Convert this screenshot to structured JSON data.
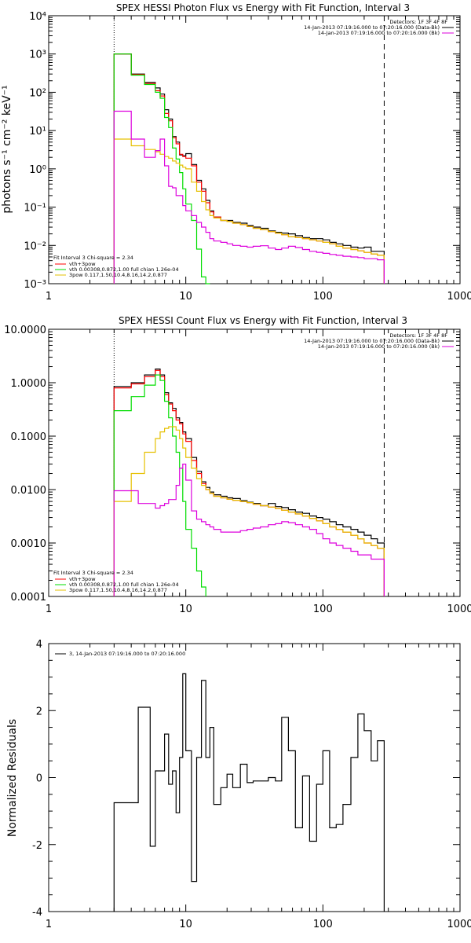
{
  "colors": {
    "data": "#000000",
    "total": "#ff0000",
    "vth": "#00dd00",
    "bpow": "#e6c000",
    "background": "#dd00dd"
  },
  "chart_data": [
    {
      "type": "line",
      "title": "SPEX HESSI Photon Flux vs Energy with Fit Function, Interval 3",
      "ylabel": "photons s⁻¹ cm⁻² keV⁻¹",
      "xscale": "log",
      "yscale": "log",
      "xlim": [
        1,
        1000
      ],
      "ylim": [
        0.001,
        10000
      ],
      "xticklabels": [
        "1",
        "10",
        "100",
        "1000"
      ],
      "yticklabels": [
        "10⁻³",
        "10⁻²",
        "10⁻¹",
        "10⁰",
        "10¹",
        "10²",
        "10³",
        "10⁴"
      ],
      "fit_range_low": 3,
      "fit_range_high": 280,
      "header_lines": [
        "Detectors: 1F 3F 4F 8F",
        "14-Jan-2013 07:19:16.000 to 07:20:16.000 (Data-Bk)",
        "14-Jan-2013 07:19:16.000 to 07:20:16.000 (Bk)"
      ],
      "legend_lines": [
        "Fit Interval 3   Chi-square = 2.34",
        "vth+3pow",
        "vth 0.00308,0.872,1.00   full chian 1.26e-04",
        "3pow 0.117,1.50,10.4,8.16,14.2,0.877"
      ],
      "edges": [
        3,
        3.5,
        4,
        4.5,
        5,
        5.5,
        6,
        6.5,
        7,
        7.5,
        8,
        8.5,
        9,
        9.5,
        10,
        11,
        12,
        13,
        14,
        15,
        16,
        18,
        20,
        22,
        25,
        28,
        31,
        35,
        40,
        45,
        50,
        56,
        63,
        71,
        80,
        90,
        100,
        112,
        125,
        140,
        160,
        180,
        200,
        225,
        250,
        280
      ],
      "series": [
        {
          "name": "Data-Bk",
          "color": "data",
          "values": [
            1000,
            1000,
            300,
            300,
            180,
            180,
            130,
            90,
            35,
            20,
            7,
            5,
            2.3,
            2.2,
            2.5,
            1.3,
            0.5,
            0.3,
            0.15,
            0.08,
            0.055,
            0.045,
            0.045,
            0.04,
            0.038,
            0.033,
            0.03,
            0.028,
            0.024,
            0.022,
            0.021,
            0.02,
            0.018,
            0.016,
            0.015,
            0.015,
            0.014,
            0.012,
            0.011,
            0.01,
            0.009,
            0.0085,
            0.009,
            0.007,
            0.007
          ]
        },
        {
          "name": "vth+3pow",
          "color": "total",
          "values": [
            1000,
            1000,
            290,
            290,
            170,
            170,
            110,
            80,
            28,
            18,
            6.5,
            4.5,
            2.4,
            2.1,
            1.9,
            1.2,
            0.45,
            0.26,
            0.13,
            0.075,
            0.055,
            0.045,
            0.042,
            0.038,
            0.035,
            0.031,
            0.028,
            0.026,
            0.023,
            0.021,
            0.019,
            0.017,
            0.016,
            0.015,
            0.014,
            0.013,
            0.012,
            0.011,
            0.0095,
            0.0085,
            0.0078,
            0.0072,
            0.0066,
            0.006,
            0.0055
          ]
        },
        {
          "name": "vth",
          "color": "vth",
          "values": [
            1000,
            1000,
            280,
            280,
            160,
            160,
            100,
            70,
            22,
            12,
            3.5,
            1.8,
            0.8,
            0.3,
            0.12,
            0.045,
            0.008,
            0.0015,
            0.0002,
            null,
            null,
            null,
            null,
            null,
            null,
            null,
            null,
            null,
            null,
            null,
            null,
            null,
            null,
            null,
            null,
            null,
            null,
            null,
            null,
            null,
            null,
            null,
            null,
            null,
            null
          ]
        },
        {
          "name": "3pow",
          "color": "bpow",
          "values": [
            6,
            6,
            4,
            4,
            3.2,
            3.2,
            2.8,
            2.4,
            2.1,
            1.9,
            1.6,
            1.4,
            1.25,
            1.1,
            1.0,
            0.45,
            0.26,
            0.14,
            0.085,
            0.06,
            0.052,
            0.045,
            0.042,
            0.038,
            0.035,
            0.031,
            0.028,
            0.026,
            0.023,
            0.021,
            0.019,
            0.017,
            0.016,
            0.015,
            0.014,
            0.013,
            0.012,
            0.011,
            0.0095,
            0.0085,
            0.0078,
            0.0072,
            0.0066,
            0.006,
            0.0055
          ]
        },
        {
          "name": "Bk",
          "color": "background",
          "values": [
            32,
            32,
            6,
            6,
            2,
            2,
            3,
            6,
            1.2,
            0.35,
            0.32,
            0.2,
            0.2,
            0.11,
            0.08,
            0.06,
            0.04,
            0.03,
            0.022,
            0.015,
            0.013,
            0.012,
            0.011,
            0.01,
            0.0095,
            0.009,
            0.0095,
            0.0098,
            0.0085,
            0.0078,
            0.0085,
            0.0095,
            0.0088,
            0.0078,
            0.007,
            0.0066,
            0.0062,
            0.0058,
            0.0055,
            0.0052,
            0.005,
            0.0048,
            0.0045,
            0.0045,
            0.0042
          ]
        }
      ]
    },
    {
      "type": "line",
      "title": "SPEX HESSI Count Flux vs Energy with Fit Function, Interval 3",
      "ylabel": "",
      "xscale": "log",
      "yscale": "log",
      "xlim": [
        1,
        1000
      ],
      "ylim": [
        0.0001,
        10
      ],
      "xticklabels": [
        "1",
        "10",
        "100",
        "1000"
      ],
      "yticklabels": [
        "0.0001",
        "0.0010",
        "0.0100",
        "0.1000",
        "1.0000",
        "10.0000"
      ],
      "fit_range_low": 3,
      "fit_range_high": 280,
      "header_lines": [
        "Detectors: 1F 3F 4F 8F",
        "14-Jan-2013 07:19:16.000 to 07:20:16.000 (Data-Bk)",
        "14-Jan-2013 07:19:16.000 to 07:20:16.000 (Bk)"
      ],
      "legend_lines": [
        "Fit Interval 3   Chi-square = 2.34",
        "vth+3pow",
        "vth 0.00308,0.872,1.00   full chian 1.26e-04",
        "3pow 0.117,1.50,10.4,8.16,14.2,0.877"
      ],
      "edges": [
        3,
        3.5,
        4,
        4.5,
        5,
        5.5,
        6,
        6.5,
        7,
        7.5,
        8,
        8.5,
        9,
        9.5,
        10,
        11,
        12,
        13,
        14,
        15,
        16,
        18,
        20,
        22,
        25,
        28,
        31,
        35,
        40,
        45,
        50,
        56,
        63,
        71,
        80,
        90,
        100,
        112,
        125,
        140,
        160,
        180,
        200,
        225,
        250,
        280
      ],
      "series": [
        {
          "name": "Data-Bk",
          "color": "data",
          "values": [
            0.85,
            0.85,
            1.0,
            1.0,
            1.4,
            1.4,
            1.8,
            1.4,
            0.65,
            0.42,
            0.33,
            0.22,
            0.18,
            0.12,
            0.09,
            0.04,
            0.022,
            0.014,
            0.011,
            0.009,
            0.008,
            0.0075,
            0.007,
            0.0068,
            0.0062,
            0.0058,
            0.0055,
            0.005,
            0.0055,
            0.0048,
            0.0046,
            0.0042,
            0.0038,
            0.0036,
            0.0032,
            0.003,
            0.0028,
            0.0025,
            0.0022,
            0.002,
            0.0018,
            0.0016,
            0.0014,
            0.0012,
            0.001
          ]
        },
        {
          "name": "vth+3pow",
          "color": "total",
          "values": [
            0.8,
            0.8,
            0.95,
            0.95,
            1.3,
            1.3,
            1.7,
            1.3,
            0.6,
            0.4,
            0.3,
            0.2,
            0.17,
            0.11,
            0.08,
            0.035,
            0.02,
            0.013,
            0.01,
            0.0085,
            0.0075,
            0.007,
            0.0066,
            0.0063,
            0.006,
            0.0057,
            0.0053,
            0.005,
            0.0047,
            0.0044,
            0.0041,
            0.0038,
            0.0035,
            0.0032,
            0.0029,
            0.0026,
            0.0023,
            0.002,
            0.0018,
            0.0016,
            0.0014,
            0.0012,
            0.001,
            0.0009,
            0.0008
          ]
        },
        {
          "name": "vth",
          "color": "vth",
          "values": [
            0.3,
            0.3,
            0.55,
            0.55,
            0.9,
            0.9,
            1.4,
            1.1,
            0.45,
            0.22,
            0.1,
            0.05,
            0.025,
            0.006,
            0.0018,
            0.0008,
            0.0003,
            0.00015,
            null,
            null,
            null,
            null,
            null,
            null,
            null,
            null,
            null,
            null,
            null,
            null,
            null,
            null,
            null,
            null,
            null,
            null,
            null,
            null,
            null,
            null,
            null,
            null,
            null,
            null,
            null
          ]
        },
        {
          "name": "3pow",
          "color": "bpow",
          "values": [
            0.006,
            0.006,
            0.02,
            0.02,
            0.05,
            0.05,
            0.09,
            0.12,
            0.14,
            0.15,
            0.15,
            0.13,
            0.09,
            0.06,
            0.04,
            0.025,
            0.016,
            0.012,
            0.01,
            0.0085,
            0.0075,
            0.007,
            0.0066,
            0.0063,
            0.006,
            0.0057,
            0.0053,
            0.005,
            0.0047,
            0.0044,
            0.0041,
            0.0038,
            0.0035,
            0.0032,
            0.0029,
            0.0026,
            0.0023,
            0.002,
            0.0018,
            0.0016,
            0.0014,
            0.0012,
            0.001,
            0.0009,
            0.0008
          ]
        },
        {
          "name": "Bk",
          "color": "background",
          "values": [
            0.0095,
            0.0095,
            0.0095,
            0.0055,
            0.0055,
            0.0055,
            0.0045,
            0.005,
            0.0055,
            0.0065,
            0.0065,
            0.012,
            0.025,
            0.03,
            0.015,
            0.004,
            0.0028,
            0.0025,
            0.0022,
            0.002,
            0.0018,
            0.0016,
            0.0016,
            0.0016,
            0.0017,
            0.0018,
            0.0019,
            0.002,
            0.0022,
            0.0023,
            0.0025,
            0.0024,
            0.0022,
            0.002,
            0.0018,
            0.0015,
            0.0012,
            0.001,
            0.0009,
            0.0008,
            0.0007,
            0.0006,
            0.0006,
            0.0005,
            0.0005
          ]
        }
      ]
    },
    {
      "type": "line",
      "title": "",
      "ylabel": "Normalized Residuals",
      "xscale": "log",
      "yscale": "linear",
      "xlim": [
        1,
        1000
      ],
      "ylim": [
        -4,
        4
      ],
      "xticklabels": [
        "1",
        "10",
        "100",
        "1000"
      ],
      "yticks": [
        -4,
        -2,
        0,
        2,
        4
      ],
      "yticklabels": [
        "-4",
        "-2",
        "0",
        "2",
        "4"
      ],
      "legend_lines": [
        "3, 14-Jan-2013 07:19:16.000 to 07:20:16.000"
      ],
      "edges": [
        3,
        3.5,
        4,
        4.5,
        5,
        5.5,
        6,
        6.5,
        7,
        7.5,
        8,
        8.5,
        9,
        9.5,
        10,
        11,
        12,
        13,
        14,
        15,
        16,
        18,
        20,
        22,
        25,
        28,
        31,
        35,
        40,
        45,
        50,
        56,
        63,
        71,
        80,
        90,
        100,
        112,
        125,
        140,
        160,
        180,
        200,
        225,
        250,
        280
      ],
      "series": [
        {
          "name": "3, 14-Jan-2013 07:19:16.000 to 07:20:16.000",
          "color": "data",
          "values": [
            -0.75,
            -0.75,
            -0.75,
            2.1,
            2.1,
            -2.05,
            0.2,
            0.2,
            1.3,
            -0.2,
            0.2,
            -1.05,
            0.6,
            3.1,
            0.8,
            -3.1,
            0.6,
            2.9,
            0.6,
            1.5,
            -0.8,
            -0.3,
            0.1,
            -0.3,
            0.4,
            -0.15,
            -0.1,
            -0.1,
            0.0,
            -0.1,
            1.8,
            0.8,
            -1.5,
            0.05,
            -1.9,
            -0.2,
            0.8,
            -1.5,
            -1.4,
            -0.8,
            0.6,
            1.9,
            1.4,
            0.5,
            1.1
          ]
        }
      ]
    }
  ]
}
